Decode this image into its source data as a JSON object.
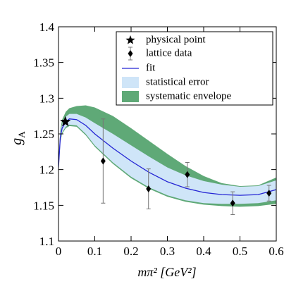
{
  "chart_data": {
    "type": "line",
    "x_label": "mπ² [GeV²]",
    "y_label": {
      "main": "g",
      "sub": "A"
    },
    "xlim": [
      0,
      0.6
    ],
    "ylim": [
      1.1,
      1.4
    ],
    "xticks": [
      0,
      0.1,
      0.2,
      0.3,
      0.4,
      0.5,
      0.6
    ],
    "yticks": [
      1.1,
      1.15,
      1.2,
      1.25,
      1.3,
      1.35,
      1.4
    ],
    "legend": "upper right",
    "x": [
      0,
      0.005,
      0.01,
      0.02,
      0.03,
      0.05,
      0.075,
      0.1,
      0.15,
      0.2,
      0.25,
      0.3,
      0.35,
      0.4,
      0.45,
      0.5,
      0.55,
      0.6
    ],
    "series": [
      {
        "name": "fit",
        "color": "#2424d4",
        "values": [
          1.203,
          1.245,
          1.258,
          1.267,
          1.271,
          1.27,
          1.262,
          1.25,
          1.23,
          1.212,
          1.196,
          1.183,
          1.174,
          1.168,
          1.165,
          1.164,
          1.165,
          1.172
        ]
      }
    ],
    "bands": [
      {
        "name": "statistical error",
        "color": "#cfe5f8",
        "lower": [
          1.198,
          1.24,
          1.252,
          1.26,
          1.263,
          1.262,
          1.25,
          1.234,
          1.21,
          1.19,
          1.175,
          1.164,
          1.157,
          1.153,
          1.152,
          1.152,
          1.153,
          1.157
        ],
        "upper": [
          1.208,
          1.25,
          1.264,
          1.274,
          1.278,
          1.278,
          1.273,
          1.265,
          1.25,
          1.234,
          1.218,
          1.203,
          1.192,
          1.184,
          1.179,
          1.176,
          1.177,
          1.185
        ]
      },
      {
        "name": "systematic envelope",
        "color": "#5fa977",
        "lower": [
          1.197,
          1.238,
          1.25,
          1.258,
          1.261,
          1.26,
          1.248,
          1.232,
          1.208,
          1.188,
          1.173,
          1.162,
          1.155,
          1.151,
          1.149,
          1.148,
          1.149,
          1.152
        ],
        "upper": [
          1.21,
          1.255,
          1.27,
          1.281,
          1.286,
          1.289,
          1.29,
          1.287,
          1.275,
          1.258,
          1.24,
          1.222,
          1.205,
          1.191,
          1.181,
          1.177,
          1.178,
          1.189
        ]
      }
    ],
    "points": {
      "name": "lattice data",
      "color": "#000000",
      "x": [
        0.123,
        0.248,
        0.355,
        0.48,
        0.58
      ],
      "values": [
        1.212,
        1.173,
        1.193,
        1.153,
        1.167
      ],
      "errors": [
        0.059,
        0.028,
        0.017,
        0.016,
        0.011
      ]
    },
    "physical_point": {
      "name": "physical point",
      "color": "#000000",
      "x": 0.019,
      "y": 1.267
    }
  }
}
